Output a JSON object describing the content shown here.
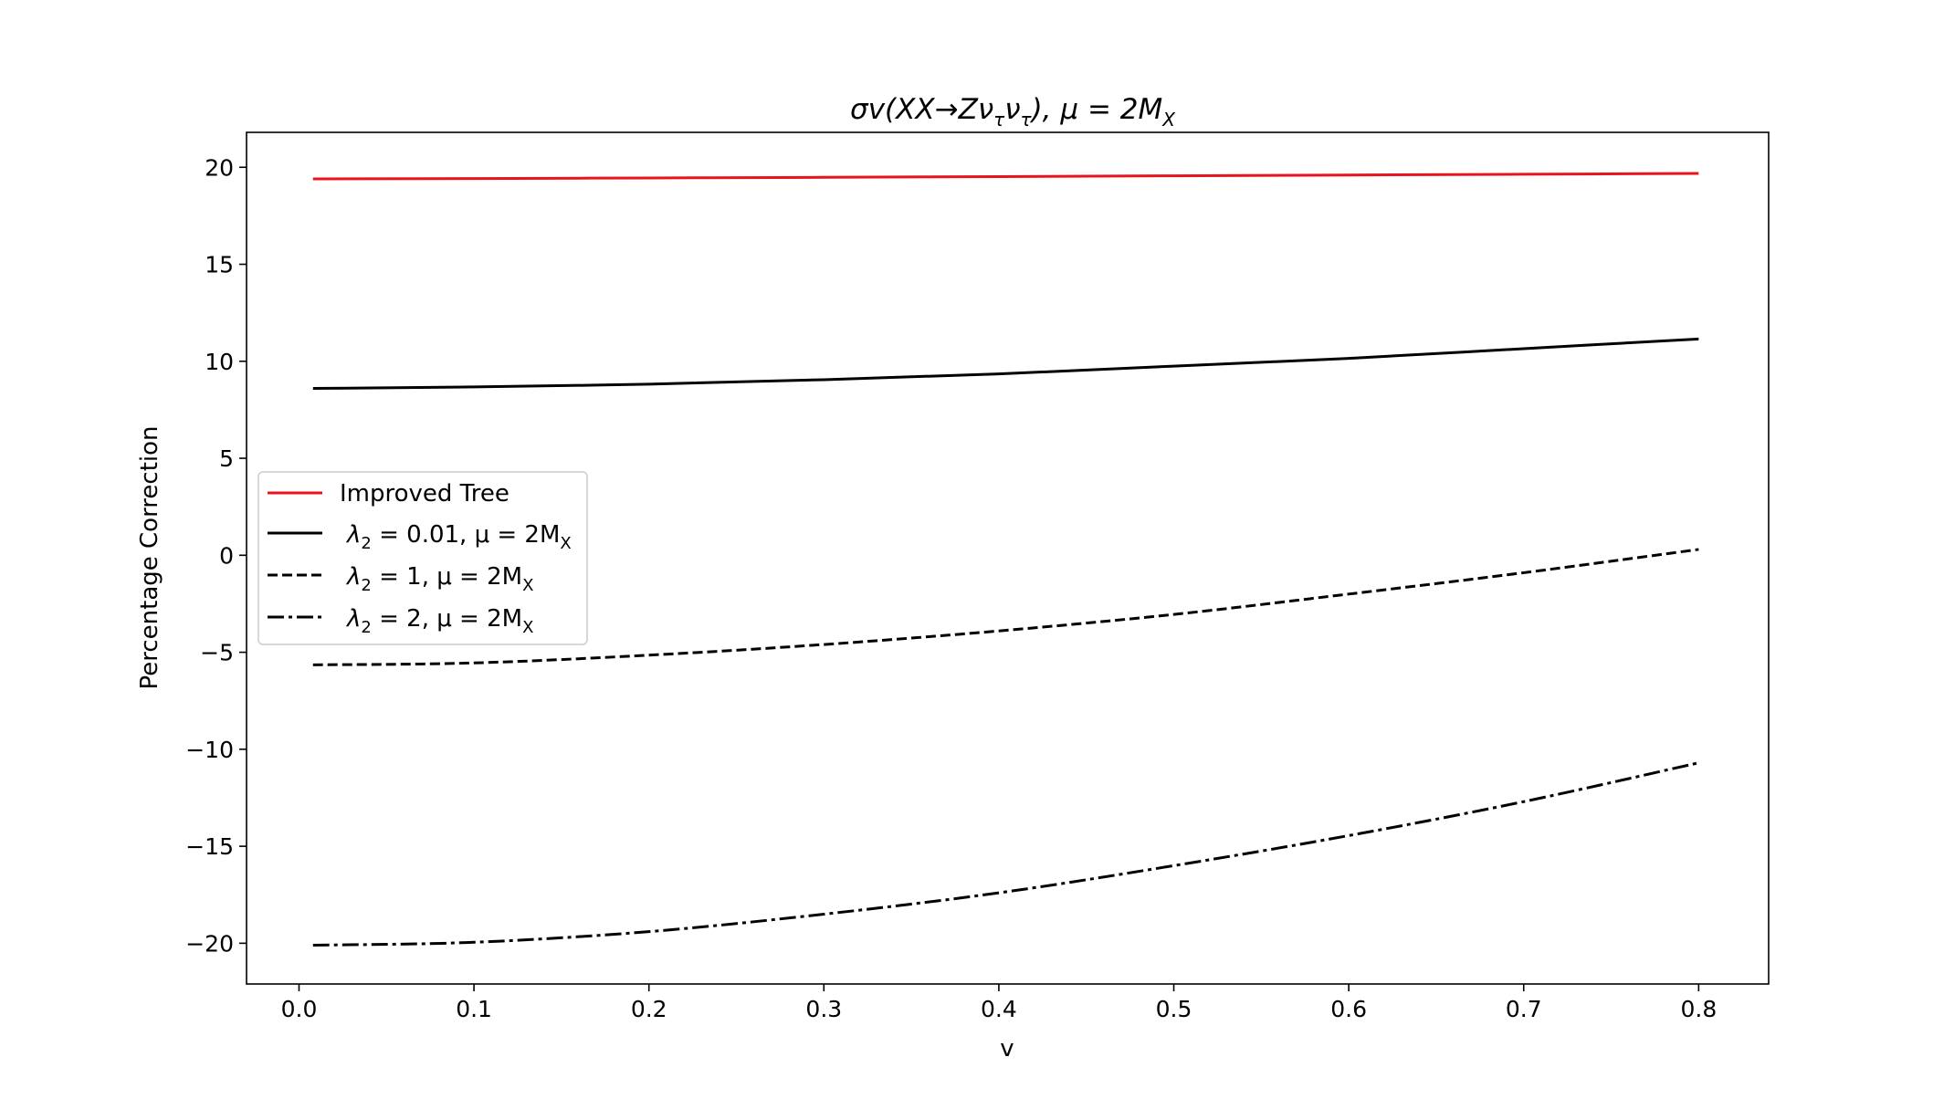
{
  "chart_data": {
    "type": "line",
    "title": "σv(XX→Zν",
    "title_sub1": "τ",
    "title_mid": "ν",
    "title_sub2": "τ",
    "title_end": "), μ = 2M",
    "title_sub3": "X",
    "xlabel": "v",
    "ylabel": "Percentage Correction",
    "xlim": [
      -0.03,
      0.84
    ],
    "ylim": [
      -22.1,
      21.8
    ],
    "xticks": [
      0.0,
      0.1,
      0.2,
      0.3,
      0.4,
      0.5,
      0.6,
      0.7,
      0.8
    ],
    "xtick_labels": [
      "0.0",
      "0.1",
      "0.2",
      "0.3",
      "0.4",
      "0.5",
      "0.6",
      "0.7",
      "0.8"
    ],
    "yticks": [
      20,
      15,
      10,
      5,
      0,
      -5,
      -10,
      -15,
      -20
    ],
    "ytick_labels": [
      "20",
      "15",
      "10",
      "5",
      "0",
      "−5",
      "−10",
      "−15",
      "−20"
    ],
    "grid": false,
    "legend_position": "center-left",
    "x": [
      0.008,
      0.1,
      0.2,
      0.3,
      0.4,
      0.5,
      0.6,
      0.7,
      0.8
    ],
    "series": [
      {
        "name": "Improved Tree",
        "color": "#e8141c",
        "dash": "solid",
        "values": [
          19.4,
          19.42,
          19.45,
          19.48,
          19.52,
          19.56,
          19.6,
          19.64,
          19.68
        ]
      },
      {
        "name": "λ2 = 0.01, μ = 2MX",
        "label_main": "λ",
        "label_sub": "2",
        "label_rest": " = 0.01, μ = 2M",
        "label_sub2": "X",
        "color": "#000000",
        "dash": "solid",
        "values": [
          8.6,
          8.68,
          8.82,
          9.05,
          9.35,
          9.75,
          10.15,
          10.65,
          11.15
        ]
      },
      {
        "name": "λ2 = 1, μ = 2MX",
        "label_main": "λ",
        "label_sub": "2",
        "label_rest": " = 1, μ = 2M",
        "label_sub2": "X",
        "color": "#000000",
        "dash": "dashed",
        "values": [
          -5.65,
          -5.55,
          -5.15,
          -4.6,
          -3.9,
          -3.05,
          -2.0,
          -0.9,
          0.3
        ]
      },
      {
        "name": "λ2 = 2, μ = 2MX",
        "label_main": "λ",
        "label_sub": "2",
        "label_rest": " = 2, μ = 2M",
        "label_sub2": "X",
        "color": "#000000",
        "dash": "dashdot",
        "values": [
          -20.1,
          -19.95,
          -19.4,
          -18.5,
          -17.4,
          -16.0,
          -14.45,
          -12.7,
          -10.7
        ]
      }
    ],
    "legend_first_label": "Improved Tree"
  }
}
